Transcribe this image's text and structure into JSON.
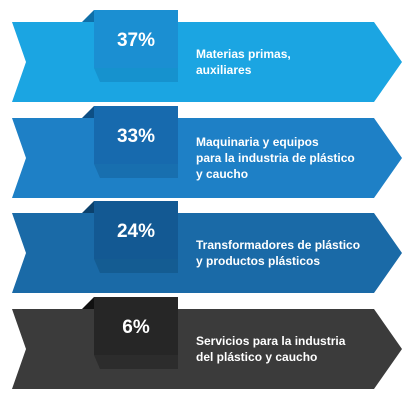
{
  "items": [
    {
      "value": "37%",
      "lines": [
        "Materias primas,",
        "auxiliares"
      ]
    },
    {
      "value": "33%",
      "lines": [
        "Maquinaria y equipos",
        "para la industria de plástico",
        "y caucho"
      ]
    },
    {
      "value": "24%",
      "lines": [
        "Transformadores de plástico",
        "y productos plásticos"
      ]
    },
    {
      "value": "6%",
      "lines": [
        "Servicios para la industria",
        "del plástico y caucho"
      ]
    }
  ]
}
